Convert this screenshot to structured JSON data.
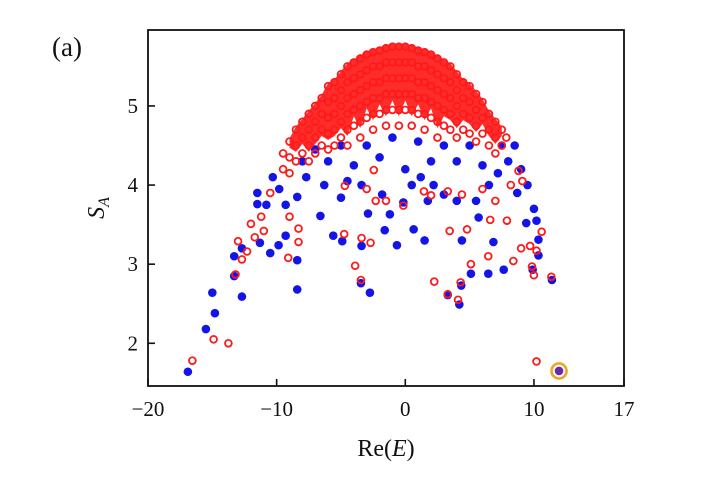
{
  "chart_data": {
    "type": "scatter",
    "panel_label": "(a)",
    "title": "",
    "xlabel": "Re(E)",
    "xlabel_parts": {
      "pre": "Re(",
      "var": "E",
      "post": ")"
    },
    "ylabel": "S_A",
    "ylabel_parts": {
      "base": "S",
      "sub": "A"
    },
    "xlim": [
      -20,
      17
    ],
    "ylim": [
      1.46,
      5.96
    ],
    "xticks": [
      -20,
      -10,
      0,
      10,
      17
    ],
    "xtick_labels": [
      "−20",
      "−10",
      "0",
      "10",
      "17"
    ],
    "yticks": [
      2,
      3,
      4,
      5
    ],
    "ytick_labels": [
      "2",
      "3",
      "4",
      "5"
    ],
    "grid": false,
    "colors": {
      "blue_filled": "#1414e6",
      "red_open": "#ff1a1a",
      "highlight_ring": "#f0a526",
      "axes": "#111111"
    },
    "series": [
      {
        "marker": "filled-circle",
        "color": "#1414e6",
        "points": [
          [
            -16.9,
            1.64
          ],
          [
            -15.5,
            2.18
          ],
          [
            -15.0,
            2.64
          ],
          [
            -14.8,
            2.38
          ],
          [
            -13.3,
            3.1
          ],
          [
            -13.3,
            2.85
          ],
          [
            -12.7,
            2.59
          ],
          [
            -12.7,
            3.2
          ],
          [
            -11.5,
            3.9
          ],
          [
            -11.5,
            3.76
          ],
          [
            -11.3,
            3.27
          ],
          [
            -10.5,
            3.14
          ],
          [
            -9.85,
            3.24
          ],
          [
            -9.3,
            3.36
          ],
          [
            -8.4,
            3.05
          ],
          [
            -8.4,
            2.68
          ],
          [
            -8.4,
            3.85
          ],
          [
            -6.6,
            3.61
          ],
          [
            -5.6,
            3.36
          ],
          [
            -4.9,
            3.29
          ],
          [
            -3.4,
            3.23
          ],
          [
            -3.45,
            2.76
          ],
          [
            -2.75,
            2.64
          ],
          [
            -2.9,
            3.64
          ],
          [
            -1.6,
            3.43
          ],
          [
            -1.2,
            3.63
          ],
          [
            -0.65,
            3.24
          ],
          [
            -0.15,
            3.78
          ],
          [
            0.65,
            3.44
          ],
          [
            1.5,
            3.3
          ],
          [
            1.75,
            3.8
          ],
          [
            3.3,
            2.61
          ],
          [
            4.2,
            2.49
          ],
          [
            4.35,
            2.73
          ],
          [
            4.4,
            3.3
          ],
          [
            5.1,
            2.88
          ],
          [
            6.45,
            2.88
          ],
          [
            6.85,
            3.28
          ],
          [
            7.65,
            2.93
          ],
          [
            9.9,
            2.93
          ],
          [
            10.35,
            3.11
          ],
          [
            10.35,
            3.31
          ],
          [
            10.2,
            3.55
          ],
          [
            11.4,
            2.8
          ],
          [
            9.4,
            3.52
          ],
          [
            5.7,
            3.59
          ],
          [
            4.0,
            3.8
          ],
          [
            3.0,
            3.88
          ],
          [
            2.2,
            4.0
          ],
          [
            0.5,
            4.0
          ],
          [
            -1.8,
            3.88
          ],
          [
            -3.4,
            4.0
          ],
          [
            -5.0,
            3.84
          ],
          [
            -6.3,
            4.0
          ],
          [
            -7.7,
            4.1
          ],
          [
            -9.3,
            3.75
          ],
          [
            -10.3,
            4.1
          ],
          [
            -8,
            4.3
          ],
          [
            -6,
            4.3
          ],
          [
            -4,
            4.25
          ],
          [
            -2,
            4.35
          ],
          [
            0,
            4.2
          ],
          [
            2,
            4.3
          ],
          [
            4,
            4.3
          ],
          [
            6,
            4.25
          ],
          [
            8,
            4.3
          ],
          [
            8.5,
            4.5
          ],
          [
            7.5,
            4.5
          ],
          [
            5,
            4.5
          ],
          [
            3,
            4.5
          ],
          [
            1,
            4.55
          ],
          [
            -1,
            4.6
          ],
          [
            -3,
            4.5
          ],
          [
            -5,
            4.5
          ],
          [
            -7,
            4.45
          ],
          [
            9,
            4.2
          ],
          [
            9.5,
            4.0
          ],
          [
            10,
            3.7
          ],
          [
            -10.8,
            3.75
          ],
          [
            -9.8,
            3.95
          ],
          [
            5.5,
            3.8
          ],
          [
            6.5,
            4.0
          ],
          [
            7.2,
            4.15
          ],
          [
            8.7,
            3.9
          ],
          [
            -4.5,
            4.05
          ],
          [
            1.2,
            4.1
          ]
        ]
      },
      {
        "marker": "open-circle",
        "color": "#ff1a1a",
        "points": [
          [
            -16.55,
            1.78
          ],
          [
            -14.9,
            2.05
          ],
          [
            -13.75,
            2.0
          ],
          [
            -13.2,
            2.87
          ],
          [
            -13.0,
            3.29
          ],
          [
            -12.7,
            3.06
          ],
          [
            -12.3,
            3.16
          ],
          [
            -12.0,
            3.51
          ],
          [
            -11.7,
            3.34
          ],
          [
            -11.0,
            3.42
          ],
          [
            -9.1,
            3.08
          ],
          [
            -8.3,
            3.45
          ],
          [
            -8.3,
            3.28
          ],
          [
            -4.75,
            3.38
          ],
          [
            -3.9,
            2.98
          ],
          [
            -3.4,
            3.33
          ],
          [
            -2.7,
            3.27
          ],
          [
            -3.45,
            2.8
          ],
          [
            2.25,
            2.78
          ],
          [
            3.3,
            2.62
          ],
          [
            4.1,
            2.55
          ],
          [
            4.3,
            2.77
          ],
          [
            5.1,
            3.0
          ],
          [
            3.45,
            3.42
          ],
          [
            4.8,
            3.44
          ],
          [
            6.45,
            3.1
          ],
          [
            6.6,
            3.56
          ],
          [
            7.9,
            3.55
          ],
          [
            8.4,
            3.04
          ],
          [
            9.0,
            3.2
          ],
          [
            9.7,
            3.23
          ],
          [
            9.85,
            2.97
          ],
          [
            10.0,
            2.86
          ],
          [
            10.2,
            3.17
          ],
          [
            11.35,
            2.84
          ],
          [
            10.2,
            1.77
          ],
          [
            10.6,
            3.41
          ],
          [
            7.85,
            4.6
          ],
          [
            8.8,
            4.18
          ],
          [
            9.1,
            4.05
          ],
          [
            -2.45,
            4.19
          ],
          [
            -3.0,
            3.95
          ],
          [
            -4.7,
            3.99
          ],
          [
            -0.15,
            3.74
          ],
          [
            1.45,
            3.92
          ],
          [
            2.0,
            3.87
          ],
          [
            4.4,
            3.88
          ],
          [
            3.3,
            3.92
          ],
          [
            -2.3,
            3.8
          ],
          [
            -1.5,
            3.8
          ],
          [
            -10.5,
            3.9
          ],
          [
            -11.2,
            3.6
          ],
          [
            -9.0,
            3.6
          ],
          [
            6.0,
            3.95
          ],
          [
            7.0,
            3.8
          ],
          [
            8.2,
            4.0
          ],
          [
            -9.5,
            4.4
          ],
          [
            -9.5,
            4.2
          ],
          [
            -9,
            4.55
          ],
          [
            -9,
            4.35
          ],
          [
            -9,
            4.15
          ],
          [
            -8.5,
            4.7
          ],
          [
            -8.5,
            4.5
          ],
          [
            -8.5,
            4.3
          ],
          [
            -8,
            4.8
          ],
          [
            -8,
            4.6
          ],
          [
            -8,
            4.4
          ],
          [
            -7.5,
            4.9
          ],
          [
            -7.5,
            4.7
          ],
          [
            -7.5,
            4.5
          ],
          [
            -7.5,
            4.3
          ],
          [
            -7,
            5.0
          ],
          [
            -7,
            4.8
          ],
          [
            -7,
            4.6
          ],
          [
            -7,
            4.4
          ],
          [
            -6.5,
            5.1
          ],
          [
            -6.5,
            4.9
          ],
          [
            -6.5,
            4.7
          ],
          [
            -6.5,
            4.5
          ],
          [
            -6,
            5.25
          ],
          [
            -6,
            5.05
          ],
          [
            -6,
            4.85
          ],
          [
            -6,
            4.65
          ],
          [
            -6,
            4.45
          ],
          [
            -5.5,
            5.3
          ],
          [
            -5.5,
            5.1
          ],
          [
            -5.5,
            4.9
          ],
          [
            -5.5,
            4.7
          ],
          [
            -5.5,
            4.5
          ],
          [
            -5,
            5.4
          ],
          [
            -5,
            5.2
          ],
          [
            -5,
            5.0
          ],
          [
            -5,
            4.8
          ],
          [
            -5,
            4.6
          ],
          [
            -4.5,
            5.5
          ],
          [
            -4.5,
            5.3
          ],
          [
            -4.5,
            5.1
          ],
          [
            -4.5,
            4.9
          ],
          [
            -4.5,
            4.7
          ],
          [
            -4.5,
            4.5
          ],
          [
            -4,
            5.55
          ],
          [
            -4,
            5.35
          ],
          [
            -4,
            5.15
          ],
          [
            -4,
            4.95
          ],
          [
            -4,
            4.75
          ],
          [
            -3.5,
            5.6
          ],
          [
            -3.5,
            5.4
          ],
          [
            -3.5,
            5.2
          ],
          [
            -3.5,
            5.0
          ],
          [
            -3.5,
            4.8
          ],
          [
            -3.5,
            4.6
          ],
          [
            -3,
            5.65
          ],
          [
            -3,
            5.45
          ],
          [
            -3,
            5.25
          ],
          [
            -3,
            5.05
          ],
          [
            -3,
            4.85
          ],
          [
            -2.5,
            5.68
          ],
          [
            -2.5,
            5.5
          ],
          [
            -2.5,
            5.3
          ],
          [
            -2.5,
            5.1
          ],
          [
            -2.5,
            4.9
          ],
          [
            -2.5,
            4.7
          ],
          [
            -2,
            5.7
          ],
          [
            -2,
            5.5
          ],
          [
            -2,
            5.3
          ],
          [
            -2,
            5.1
          ],
          [
            -2,
            4.9
          ],
          [
            -1.5,
            5.73
          ],
          [
            -1.5,
            5.55
          ],
          [
            -1.5,
            5.35
          ],
          [
            -1.5,
            5.15
          ],
          [
            -1.5,
            4.95
          ],
          [
            -1.5,
            4.75
          ],
          [
            -1,
            5.75
          ],
          [
            -1,
            5.55
          ],
          [
            -1,
            5.35
          ],
          [
            -1,
            5.15
          ],
          [
            -1,
            4.95
          ],
          [
            -0.5,
            5.75
          ],
          [
            -0.5,
            5.55
          ],
          [
            -0.5,
            5.35
          ],
          [
            -0.5,
            5.15
          ],
          [
            -0.5,
            4.95
          ],
          [
            -0.5,
            4.75
          ],
          [
            0,
            5.75
          ],
          [
            0,
            5.55
          ],
          [
            0,
            5.35
          ],
          [
            0,
            5.15
          ],
          [
            0,
            4.95
          ],
          [
            0.5,
            5.73
          ],
          [
            0.5,
            5.55
          ],
          [
            0.5,
            5.35
          ],
          [
            0.5,
            5.15
          ],
          [
            0.5,
            4.95
          ],
          [
            0.5,
            4.75
          ],
          [
            1,
            5.7
          ],
          [
            1,
            5.5
          ],
          [
            1,
            5.3
          ],
          [
            1,
            5.1
          ],
          [
            1,
            4.9
          ],
          [
            1.5,
            5.68
          ],
          [
            1.5,
            5.5
          ],
          [
            1.5,
            5.3
          ],
          [
            1.5,
            5.1
          ],
          [
            1.5,
            4.9
          ],
          [
            1.5,
            4.7
          ],
          [
            2,
            5.65
          ],
          [
            2,
            5.45
          ],
          [
            2,
            5.25
          ],
          [
            2,
            5.05
          ],
          [
            2,
            4.85
          ],
          [
            2.5,
            5.6
          ],
          [
            2.5,
            5.4
          ],
          [
            2.5,
            5.2
          ],
          [
            2.5,
            5.0
          ],
          [
            2.5,
            4.8
          ],
          [
            2.5,
            4.6
          ],
          [
            3,
            5.55
          ],
          [
            3,
            5.35
          ],
          [
            3,
            5.15
          ],
          [
            3,
            4.95
          ],
          [
            3,
            4.75
          ],
          [
            3.5,
            5.5
          ],
          [
            3.5,
            5.3
          ],
          [
            3.5,
            5.1
          ],
          [
            3.5,
            4.9
          ],
          [
            3.5,
            4.7
          ],
          [
            4,
            5.4
          ],
          [
            4,
            5.2
          ],
          [
            4,
            5.0
          ],
          [
            4,
            4.8
          ],
          [
            4,
            4.6
          ],
          [
            4.5,
            5.3
          ],
          [
            4.5,
            5.1
          ],
          [
            4.5,
            4.9
          ],
          [
            4.5,
            4.7
          ],
          [
            5,
            5.25
          ],
          [
            5,
            5.05
          ],
          [
            5,
            4.85
          ],
          [
            5,
            4.65
          ],
          [
            5.5,
            5.15
          ],
          [
            5.5,
            4.95
          ],
          [
            5.5,
            4.75
          ],
          [
            5.5,
            4.55
          ],
          [
            6,
            5.05
          ],
          [
            6,
            4.85
          ],
          [
            6,
            4.65
          ],
          [
            6.5,
            4.9
          ],
          [
            6.5,
            4.7
          ],
          [
            6.5,
            4.5
          ],
          [
            7,
            4.8
          ],
          [
            7,
            4.6
          ],
          [
            7,
            4.4
          ],
          [
            7.5,
            4.7
          ],
          [
            7.5,
            4.5
          ]
        ]
      }
    ],
    "highlighted_point": {
      "x": 11.95,
      "y": 1.65,
      "marker": "filled-circle",
      "color": "#6a2aa0",
      "ring_color": "#f0a526"
    }
  }
}
